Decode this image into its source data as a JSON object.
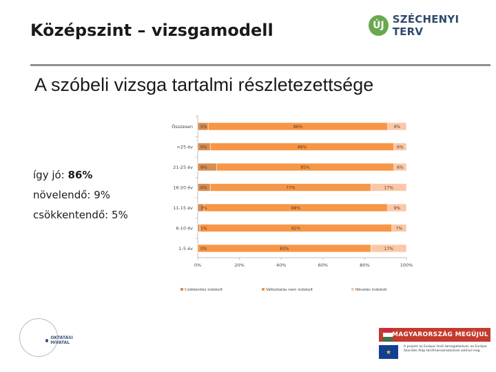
{
  "header": {
    "title": "Középszint – vizsgamodell",
    "logo_mark": "ÚJ",
    "logo_text": "SZÉCHENYI TERV"
  },
  "subtitle": "A szóbeli vizsga tartalmi részletezettsége",
  "summary": {
    "line1_label": "így jó:",
    "line1_value": "86%",
    "line2": "növelendő: 9%",
    "line3": "csökkentendő: 5%"
  },
  "chart_data": {
    "type": "bar",
    "orientation": "horizontal",
    "stacked": true,
    "categories": [
      "Összesen",
      ">25 év",
      "21-25 év",
      "16-20 év",
      "11-15 év",
      "6-10 év",
      "1-5 év"
    ],
    "series": [
      {
        "name": "Csökkentés indokolt",
        "color": "#d78d52",
        "values": [
          5,
          6,
          9,
          6,
          3,
          1,
          0
        ],
        "labels": [
          "5%",
          "6%",
          "9%",
          "6%",
          "3%",
          "1%",
          "0%"
        ]
      },
      {
        "name": "Változtatás nem indokolt",
        "color": "#f79646",
        "values": [
          86,
          88,
          85,
          77,
          88,
          92,
          83
        ],
        "labels": [
          "86%",
          "88%",
          "85%",
          "77%",
          "88%",
          "92%",
          "83%"
        ]
      },
      {
        "name": "Növelés indokolt",
        "color": "#fac8a8",
        "values": [
          9,
          6,
          6,
          17,
          9,
          7,
          17
        ],
        "labels": [
          "9%",
          "6%",
          "6%",
          "17%",
          "9%",
          "7%",
          "17%"
        ]
      }
    ],
    "x_ticks": [
      "0%",
      "20%",
      "40%",
      "60%",
      "80%",
      "100%"
    ],
    "xlim": [
      0,
      100
    ]
  },
  "footer": {
    "badge_text": "MAGYARORSZÁG MEGÚJUL",
    "eu_text": "A projekt az Európai Unió támogatásával, az Európai Szociális Alap társfinanszírozásával valósul meg.",
    "office_text": "OKTATÁSI HIVATAL"
  }
}
